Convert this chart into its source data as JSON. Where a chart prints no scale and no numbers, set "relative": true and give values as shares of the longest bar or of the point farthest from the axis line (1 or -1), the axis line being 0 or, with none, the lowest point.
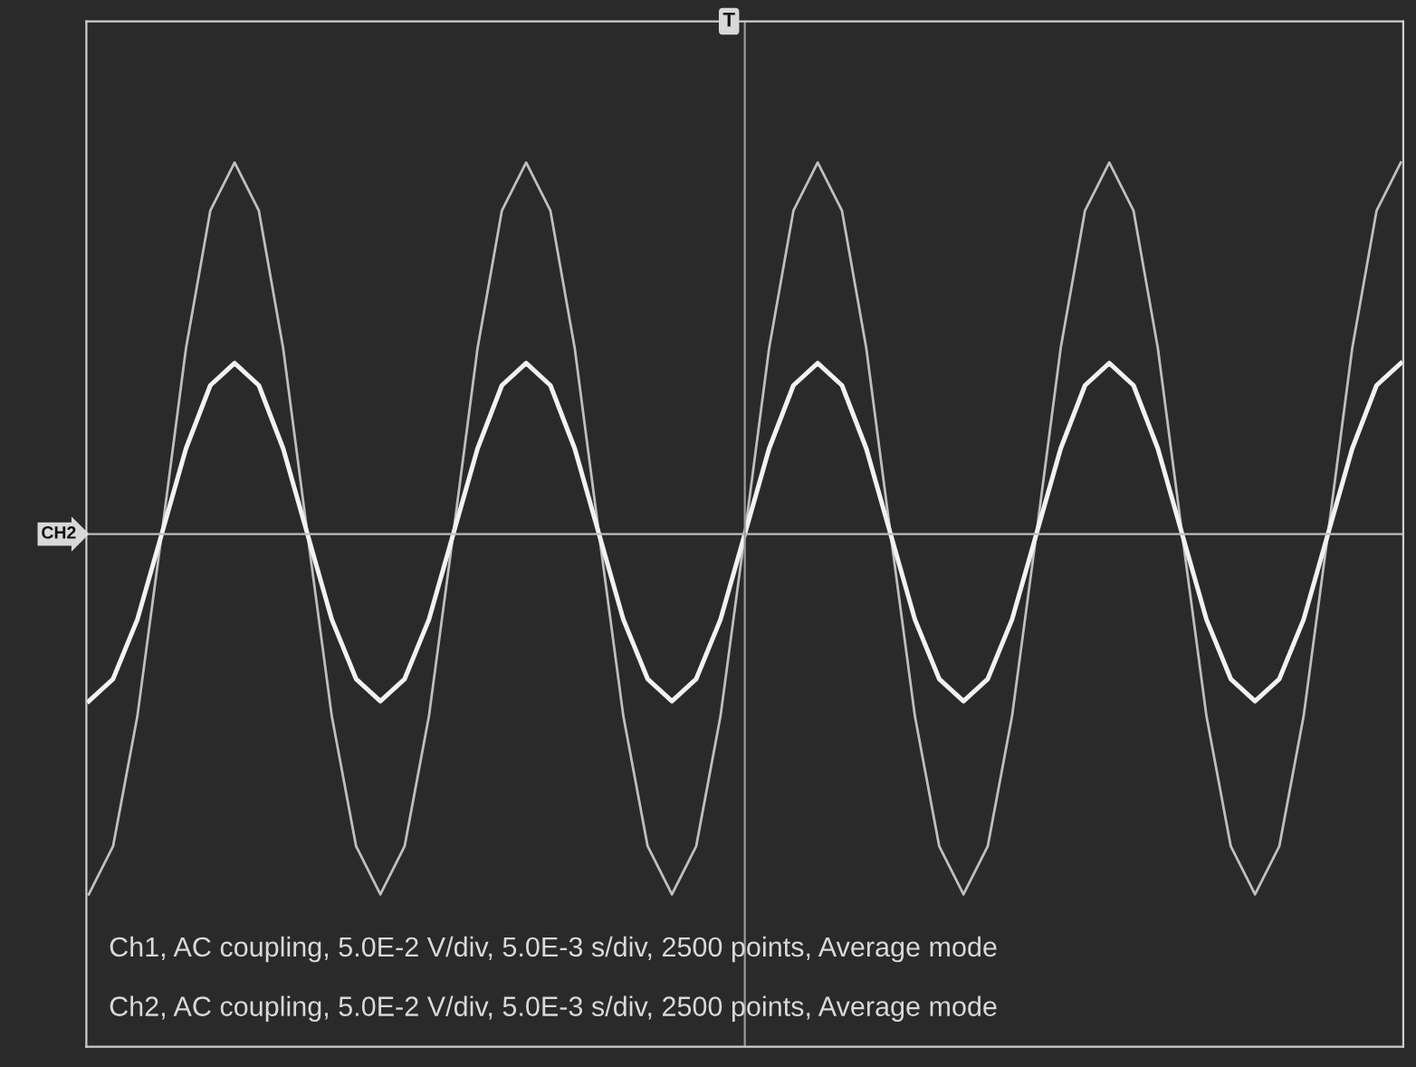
{
  "chart_data": {
    "type": "line",
    "relative": true,
    "categories": [
      null,
      null,
      null,
      null,
      null,
      null,
      null,
      null,
      null,
      null,
      null,
      null,
      null,
      null,
      null,
      null,
      null,
      null,
      null,
      null,
      null,
      null,
      null,
      null,
      null,
      null,
      null,
      null,
      null,
      null,
      null,
      null,
      null,
      null,
      null,
      null,
      null,
      null,
      null,
      null,
      null,
      null,
      null,
      null,
      null,
      null,
      null,
      null,
      null,
      null,
      null,
      null,
      null,
      null,
      null
    ],
    "series": [
      {
        "color": "#bfbfbf",
        "values": [
          -0.97,
          -0.84,
          -0.49,
          0,
          0.5,
          0.87,
          1,
          0.87,
          0.5,
          0,
          -0.49,
          -0.84,
          -0.97,
          -0.84,
          -0.49,
          0,
          0.5,
          0.87,
          1,
          0.87,
          0.5,
          0,
          -0.49,
          -0.84,
          -0.97,
          -0.84,
          -0.49,
          0,
          0.5,
          0.87,
          1,
          0.87,
          0.5,
          0,
          -0.49,
          -0.84,
          -0.97,
          -0.84,
          -0.49,
          0,
          0.5,
          0.87,
          1,
          0.87,
          0.5,
          0,
          -0.49,
          -0.84,
          -0.97,
          -0.84,
          -0.49,
          0,
          0.5,
          0.87,
          1
        ]
      },
      {
        "color": "#f2f2f2",
        "values": [
          -0.45,
          -0.39,
          -0.23,
          0,
          0.23,
          0.4,
          0.46,
          0.4,
          0.23,
          0,
          -0.23,
          -0.39,
          -0.45,
          -0.39,
          -0.23,
          0,
          0.23,
          0.4,
          0.46,
          0.4,
          0.23,
          0,
          -0.23,
          -0.39,
          -0.45,
          -0.39,
          -0.23,
          0,
          0.23,
          0.4,
          0.46,
          0.4,
          0.23,
          0,
          -0.23,
          -0.39,
          -0.45,
          -0.39,
          -0.23,
          0,
          0.23,
          0.4,
          0.46,
          0.4,
          0.23,
          0,
          -0.23,
          -0.39,
          -0.45,
          -0.39,
          -0.23,
          0,
          0.23,
          0.4,
          0.46
        ]
      }
    ],
    "ref_lines": [
      {
        "axis": "y",
        "value": 0,
        "label": "CH2",
        "color": "#bdbdbd"
      }
    ],
    "annotations": [
      "T",
      "Ch1, AC coupling, 5.0E-2 V/div, 5.0E-3 s/div, 2500 points, Average mode",
      "Ch2, AC coupling, 5.0E-2 V/div, 5.0E-3 s/div, 2500 points, Average mode"
    ],
    "grid": false,
    "legend": false,
    "marker": "none",
    "line_style": "solid"
  }
}
